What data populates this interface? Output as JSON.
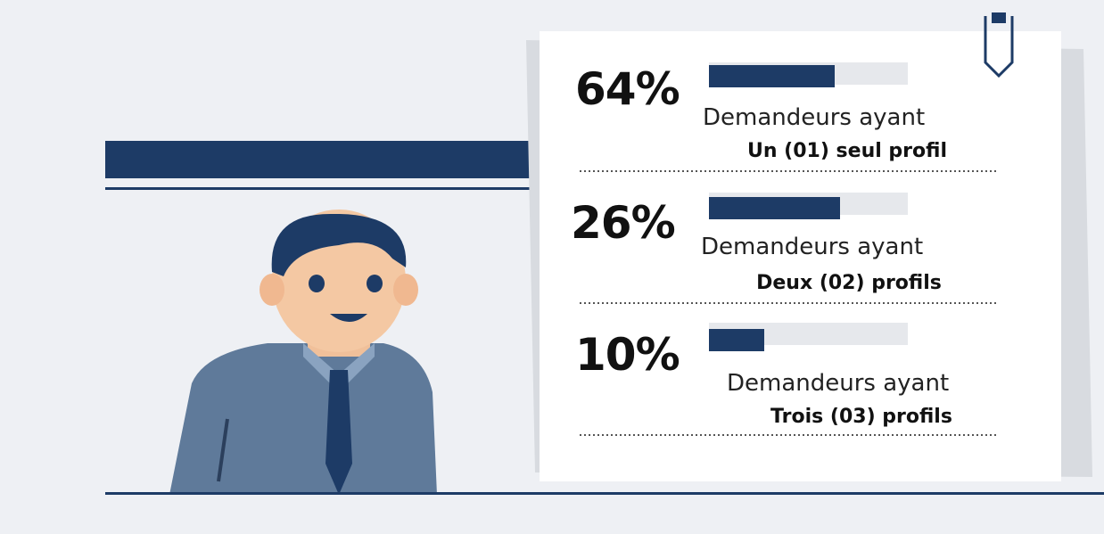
{
  "items": [
    {
      "percent": "64%",
      "label": "Demandeurs ayant",
      "profile": "Un (01) seul profil"
    },
    {
      "percent": "26%",
      "label": "Demandeurs ayant",
      "profile": "Deux (02) profils"
    },
    {
      "percent": "10%",
      "label": "Demandeurs ayant",
      "profile": "Trois (03) profils"
    }
  ]
}
